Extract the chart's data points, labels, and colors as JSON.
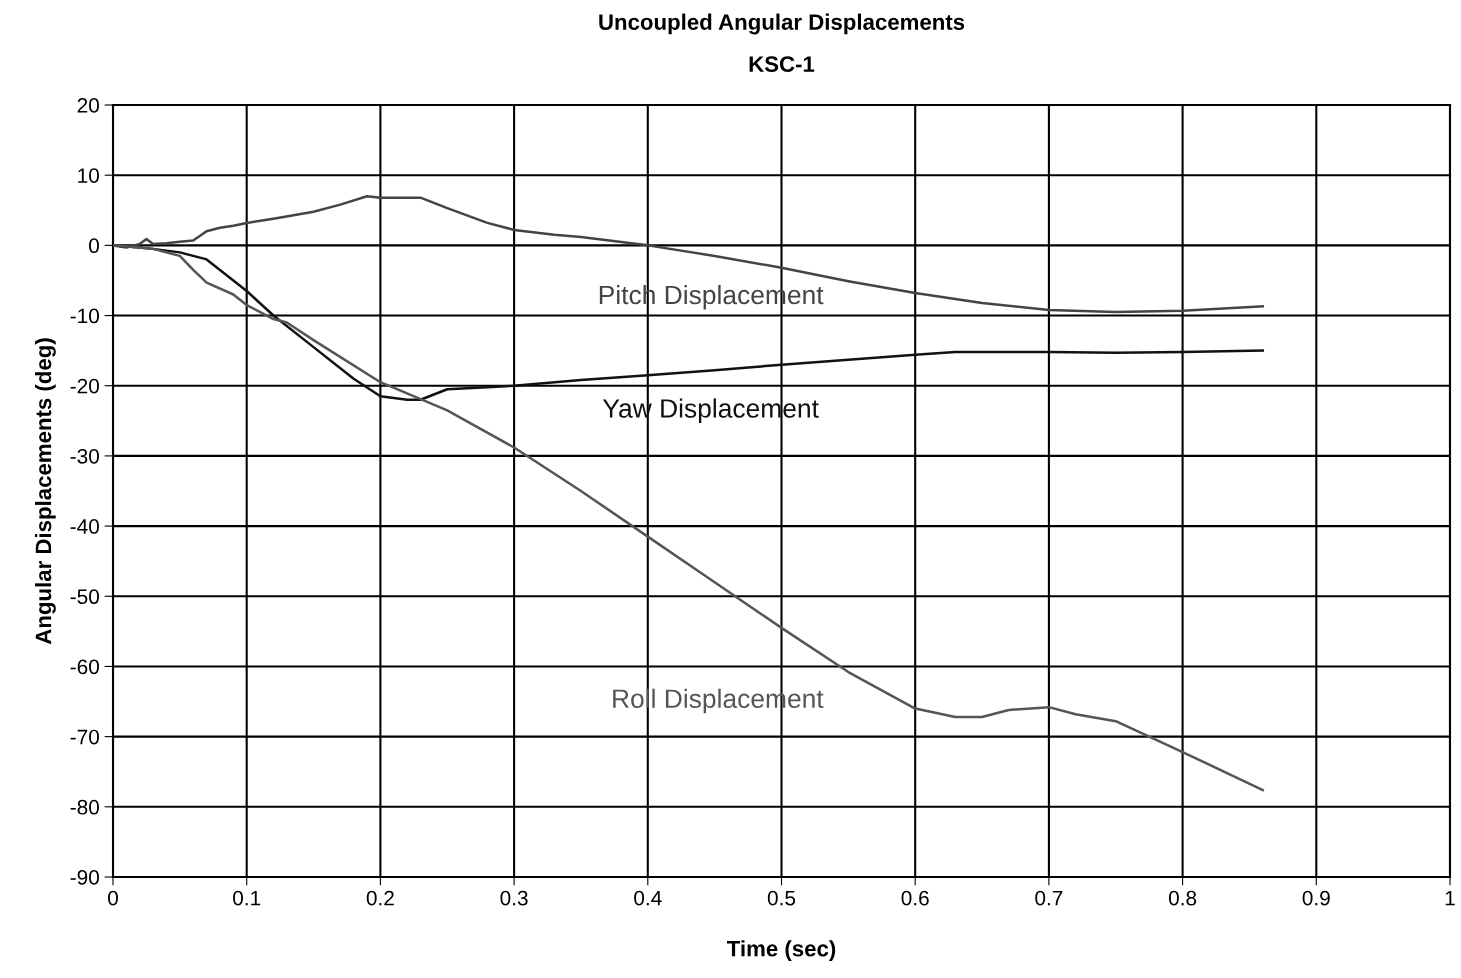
{
  "chart_data": {
    "type": "line",
    "title": "Uncoupled Angular Displacements",
    "subtitle": "KSC-1",
    "xlabel": "Time (sec)",
    "ylabel": "Angular Displacements (deg)",
    "xlim": [
      0,
      1
    ],
    "xticks": [
      0,
      0.1,
      0.2,
      0.3,
      0.4,
      0.5,
      0.6,
      0.7,
      0.8,
      0.9,
      1
    ],
    "ylim": [
      -90,
      20
    ],
    "yticks": [
      -90,
      -80,
      -70,
      -60,
      -50,
      -40,
      -30,
      -20,
      -10,
      0,
      10,
      20
    ],
    "grid": true,
    "marker": "none",
    "line_style": "solid",
    "series": [
      {
        "name": "Pitch Displacement",
        "color": "#444444",
        "x": [
          0,
          0.01,
          0.02,
          0.025,
          0.03,
          0.04,
          0.05,
          0.06,
          0.07,
          0.08,
          0.09,
          0.1,
          0.12,
          0.15,
          0.17,
          0.19,
          0.2,
          0.23,
          0.25,
          0.28,
          0.3,
          0.33,
          0.35,
          0.4,
          0.45,
          0.5,
          0.55,
          0.6,
          0.65,
          0.7,
          0.75,
          0.8,
          0.86
        ],
        "values": [
          0,
          -0.3,
          0.2,
          0.9,
          0.2,
          0.3,
          0.5,
          0.7,
          2,
          2.5,
          2.8,
          3.2,
          3.8,
          4.8,
          5.8,
          7,
          6.8,
          6.8,
          5.3,
          3.2,
          2.2,
          1.5,
          1.2,
          0,
          -1.5,
          -3.2,
          -5.1,
          -6.8,
          -8.2,
          -9.2,
          -9.5,
          -9.3,
          -8.7
        ]
      },
      {
        "name": "Yaw Displacement",
        "color": "#111111",
        "x": [
          0,
          0.03,
          0.05,
          0.06,
          0.07,
          0.09,
          0.1,
          0.12,
          0.15,
          0.18,
          0.2,
          0.22,
          0.23,
          0.25,
          0.28,
          0.3,
          0.35,
          0.4,
          0.45,
          0.5,
          0.55,
          0.6,
          0.63,
          0.7,
          0.75,
          0.8,
          0.86
        ],
        "values": [
          0,
          -0.5,
          -1,
          -1.5,
          -2,
          -5,
          -6.5,
          -10,
          -14.5,
          -19,
          -21.5,
          -22,
          -22,
          -20.5,
          -20.2,
          -20,
          -19.2,
          -18.5,
          -17.8,
          -17,
          -16.3,
          -15.6,
          -15.2,
          -15.2,
          -15.3,
          -15.2,
          -15
        ]
      },
      {
        "name": "Roll Displacement",
        "color": "#555555",
        "x": [
          0,
          0.03,
          0.05,
          0.06,
          0.07,
          0.09,
          0.1,
          0.12,
          0.13,
          0.15,
          0.2,
          0.25,
          0.3,
          0.35,
          0.4,
          0.45,
          0.5,
          0.55,
          0.6,
          0.63,
          0.65,
          0.67,
          0.7,
          0.72,
          0.75,
          0.8,
          0.86
        ],
        "values": [
          0,
          -0.5,
          -1.5,
          -3.5,
          -5.3,
          -7,
          -8.5,
          -10.5,
          -11,
          -13.5,
          -19.5,
          -23.5,
          -28.8,
          -35,
          -41.5,
          -48,
          -54.5,
          -60.8,
          -66,
          -67.2,
          -67.2,
          -66.2,
          -65.8,
          -66.8,
          -67.8,
          -72.2,
          -77.6
        ]
      }
    ]
  }
}
